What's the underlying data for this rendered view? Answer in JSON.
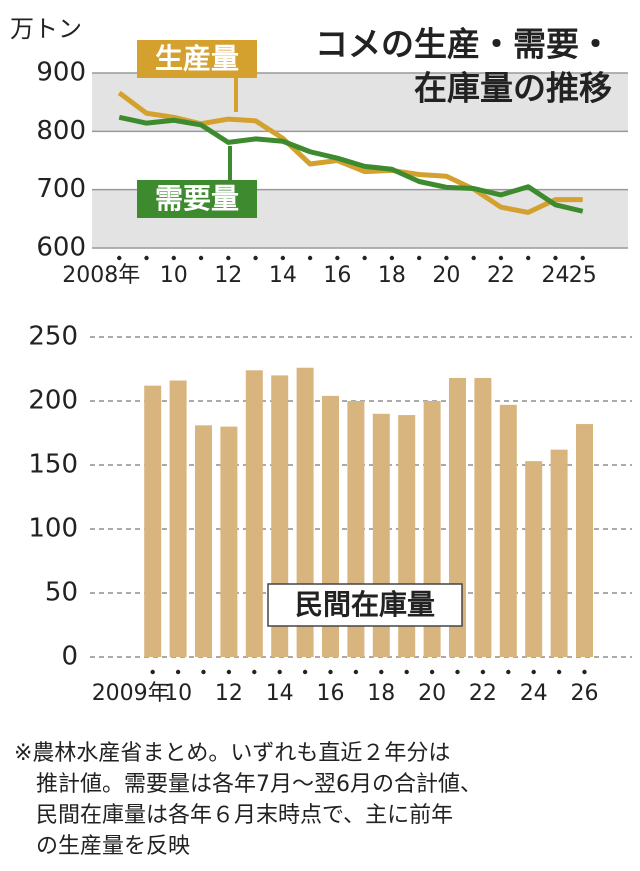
{
  "chart_data": [
    {
      "type": "line",
      "title": [
        "コメの生産・需要・",
        "在庫量の推移"
      ],
      "y_unit": "万トン",
      "x": [
        2008,
        2009,
        2010,
        2011,
        2012,
        2013,
        2014,
        2015,
        2016,
        2017,
        2018,
        2019,
        2020,
        2021,
        2022,
        2023,
        2024,
        2025
      ],
      "series": [
        {
          "name": "生産量",
          "color": "#d4a02e",
          "values": [
            866,
            831,
            824,
            813,
            821,
            818,
            788,
            744,
            750,
            731,
            733,
            726,
            723,
            701,
            670,
            661,
            683,
            683
          ]
        },
        {
          "name": "需要量",
          "color": "#3e8a2f",
          "values": [
            824,
            814,
            819,
            811,
            781,
            787,
            783,
            765,
            754,
            740,
            735,
            714,
            704,
            702,
            691,
            705,
            674,
            663
          ]
        }
      ],
      "xlim": [
        2007,
        2026
      ],
      "xticks": [
        {
          "value": 2008,
          "label": "2008年"
        },
        {
          "value": 2010,
          "label": "10"
        },
        {
          "value": 2012,
          "label": "12"
        },
        {
          "value": 2014,
          "label": "14"
        },
        {
          "value": 2016,
          "label": "16"
        },
        {
          "value": 2018,
          "label": "18"
        },
        {
          "value": 2020,
          "label": "20"
        },
        {
          "value": 2022,
          "label": "22"
        },
        {
          "value": 2024,
          "label": "24"
        },
        {
          "value": 2025,
          "label": "25"
        }
      ],
      "ylim": [
        600,
        900
      ],
      "yticks": [
        600,
        700,
        800,
        900
      ]
    },
    {
      "type": "bar",
      "annotation": "民間在庫量",
      "categories": [
        "2009年",
        "10",
        null,
        "12",
        null,
        "14",
        null,
        "16",
        null,
        "18",
        null,
        "20",
        null,
        "22",
        null,
        "24",
        null,
        "26"
      ],
      "values": [
        212,
        216,
        181,
        180,
        224,
        220,
        226,
        204,
        200,
        190,
        189,
        200,
        218,
        218,
        197,
        153,
        162,
        182
      ],
      "color": "#d8b57f",
      "ylim": [
        0,
        250
      ],
      "yticks": [
        0,
        50,
        100,
        150,
        200,
        250
      ],
      "grid": true
    }
  ],
  "note": [
    "※農林水産省まとめ。いずれも直近２年分は",
    "推計値。需要量は各年7月～翌6月の合計値、",
    "民間在庫量は各年６月末時点で、主に前年",
    "の生産量を反映"
  ]
}
